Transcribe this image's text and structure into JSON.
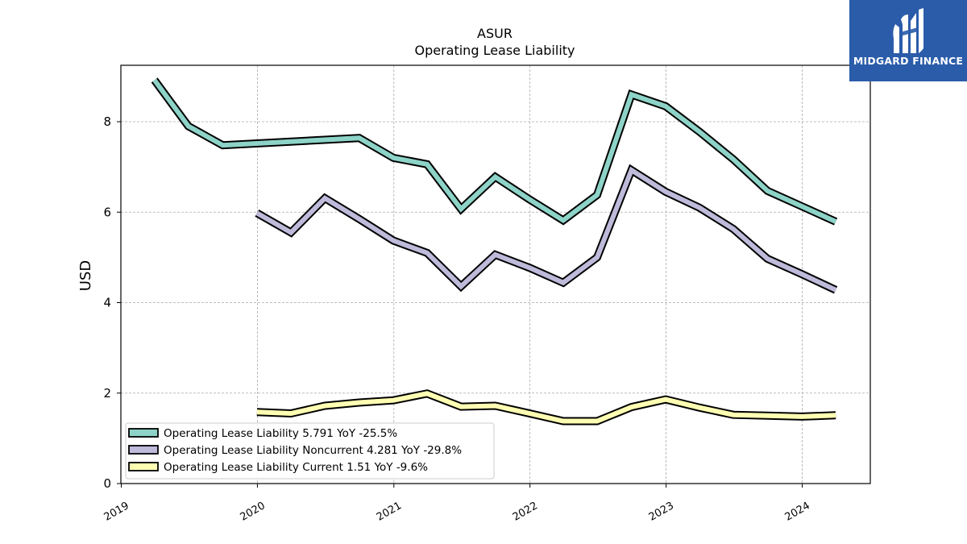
{
  "chart_data": {
    "type": "line",
    "title": "ASUR",
    "subtitle": "Operating Lease Liability",
    "ylabel": "USD",
    "xlabel": "",
    "ylim": [
      0,
      9.25
    ],
    "yticks": [
      0,
      2,
      4,
      6,
      8
    ],
    "xticks": [
      "2019",
      "2020",
      "2021",
      "2022",
      "2023",
      "2024"
    ],
    "grid": true,
    "legend_position": "lower-left",
    "series": [
      {
        "name": "Operating Lease Liability  5.791 YoY -25.5%",
        "color": "#8dd3c7",
        "x": [
          "2019-03-31",
          "2019-06-30",
          "2019-09-30",
          "2020-09-30",
          "2020-12-31",
          "2021-03-31",
          "2021-06-30",
          "2021-09-30",
          "2021-12-31",
          "2022-03-31",
          "2022-06-30",
          "2022-09-30",
          "2022-12-31",
          "2023-03-31",
          "2023-06-30",
          "2023-09-30",
          "2023-12-31",
          "2024-03-31"
        ],
        "values": [
          8.92,
          7.9,
          7.48,
          7.64,
          7.2,
          7.06,
          6.07,
          6.78,
          6.28,
          5.82,
          6.38,
          8.6,
          8.34,
          7.78,
          7.17,
          6.47,
          6.13,
          5.79
        ]
      },
      {
        "name": "Operating Lease Liability Noncurrent  4.281 YoY -29.8%",
        "color": "#bebada",
        "x": [
          "2019-12-31",
          "2020-03-31",
          "2020-06-30",
          "2020-09-30",
          "2020-12-31",
          "2021-03-31",
          "2021-06-30",
          "2021-09-30",
          "2021-12-31",
          "2022-03-31",
          "2022-06-30",
          "2022-09-30",
          "2022-12-31",
          "2023-03-31",
          "2023-06-30",
          "2023-09-30",
          "2023-12-31",
          "2024-03-31"
        ],
        "values": [
          5.98,
          5.55,
          6.31,
          5.85,
          5.37,
          5.1,
          4.36,
          5.06,
          4.77,
          4.44,
          5.0,
          6.93,
          6.45,
          6.1,
          5.63,
          4.97,
          4.63,
          4.28
        ]
      },
      {
        "name": "Operating Lease Liability Current  1.51 YoY -9.6%",
        "color": "#ffffb3",
        "x": [
          "2019-12-31",
          "2020-03-31",
          "2020-06-30",
          "2020-09-30",
          "2020-12-31",
          "2021-03-31",
          "2021-06-30",
          "2021-09-30",
          "2021-12-31",
          "2022-03-31",
          "2022-06-30",
          "2022-09-30",
          "2022-12-31",
          "2023-03-31",
          "2023-06-30",
          "2023-09-30",
          "2023-12-31",
          "2024-03-31"
        ],
        "values": [
          1.58,
          1.55,
          1.72,
          1.79,
          1.84,
          1.99,
          1.7,
          1.72,
          1.55,
          1.38,
          1.38,
          1.69,
          1.86,
          1.68,
          1.52,
          1.5,
          1.48,
          1.51
        ]
      }
    ]
  },
  "watermark": {
    "text": "MIDGARD FINANCE",
    "background": "#2a5caa"
  }
}
